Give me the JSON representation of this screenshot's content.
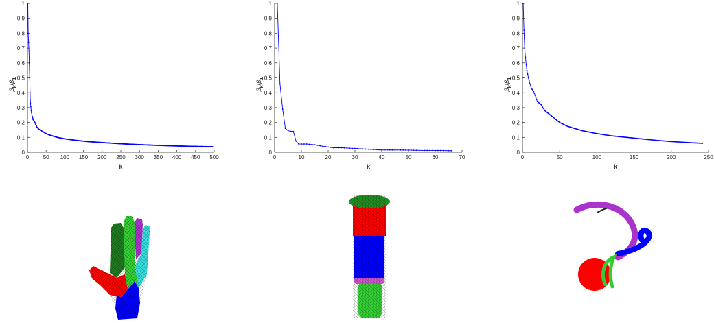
{
  "chart_data": [
    {
      "type": "line",
      "xlabel": "k",
      "ylabel_main": "β",
      "ylabel_sub_num": "k",
      "ylabel_sub_den": "1",
      "xlim": [
        0,
        500
      ],
      "ylim": [
        0,
        1
      ],
      "x_ticks": [
        0,
        50,
        100,
        150,
        200,
        250,
        300,
        350,
        400,
        450,
        500
      ],
      "y_ticks": [
        0,
        0.1,
        0.2,
        0.3,
        0.4,
        0.5,
        0.6,
        0.7,
        0.8,
        0.9,
        1
      ],
      "x_tick_labels": [
        "0",
        "50",
        "100",
        "150",
        "200",
        "250",
        "300",
        "350",
        "400",
        "450",
        "500"
      ],
      "y_tick_labels": [
        "0",
        "0.1",
        "0.2",
        "0.3",
        "0.4",
        "0.5",
        "0.6",
        "0.7",
        "0.8",
        "0.9",
        "1"
      ],
      "series": [
        {
          "color": "#0000ff",
          "n_points": 496,
          "x": [
            1,
            2,
            3,
            4,
            5,
            6,
            7,
            8,
            10,
            12,
            15,
            20,
            25,
            30,
            40,
            50,
            60,
            80,
            100,
            130,
            160,
            200,
            250,
            300,
            350,
            400,
            450,
            496
          ],
          "y": [
            1.0,
            0.8,
            0.74,
            0.68,
            0.6,
            0.5,
            0.4,
            0.33,
            0.28,
            0.25,
            0.22,
            0.2,
            0.17,
            0.155,
            0.14,
            0.125,
            0.115,
            0.1,
            0.09,
            0.08,
            0.072,
            0.065,
            0.057,
            0.051,
            0.046,
            0.042,
            0.039,
            0.037
          ]
        }
      ]
    },
    {
      "type": "line",
      "xlabel": "k",
      "ylabel_main": "β",
      "ylabel_sub_num": "k",
      "ylabel_sub_den": "1",
      "xlim": [
        0,
        70
      ],
      "ylim": [
        0,
        1
      ],
      "x_ticks": [
        0,
        10,
        20,
        30,
        40,
        50,
        60,
        70
      ],
      "y_ticks": [
        0,
        0.1,
        0.2,
        0.3,
        0.4,
        0.5,
        0.6,
        0.7,
        0.8,
        0.9,
        1
      ],
      "x_tick_labels": [
        "0",
        "10",
        "20",
        "30",
        "40",
        "50",
        "60",
        "70"
      ],
      "y_tick_labels": [
        "0",
        "0.1",
        "0.2",
        "0.3",
        "0.4",
        "0.5",
        "0.6",
        "0.7",
        "0.8",
        "0.9",
        "1"
      ],
      "series": [
        {
          "color": "#0000ff",
          "n_points": 66,
          "x": [
            1,
            2,
            3,
            4,
            5,
            6,
            7,
            8,
            9,
            10,
            12,
            15,
            18,
            20,
            22,
            25,
            30,
            35,
            40,
            45,
            50,
            55,
            60,
            66
          ],
          "y": [
            1.0,
            0.46,
            0.29,
            0.16,
            0.145,
            0.14,
            0.14,
            0.075,
            0.055,
            0.055,
            0.055,
            0.05,
            0.04,
            0.035,
            0.03,
            0.03,
            0.025,
            0.02,
            0.015,
            0.015,
            0.014,
            0.012,
            0.012,
            0.01
          ]
        }
      ]
    },
    {
      "type": "line",
      "xlabel": "k",
      "ylabel_main": "β",
      "ylabel_sub_num": "k",
      "ylabel_sub_den": "1",
      "xlim": [
        0,
        250
      ],
      "ylim": [
        0,
        1
      ],
      "x_ticks": [
        0,
        50,
        100,
        150,
        200,
        250
      ],
      "y_ticks": [
        0,
        0.1,
        0.2,
        0.3,
        0.4,
        0.5,
        0.6,
        0.7,
        0.8,
        0.9,
        1
      ],
      "x_tick_labels": [
        "0",
        "50",
        "100",
        "150",
        "200",
        "250"
      ],
      "y_tick_labels": [
        "0",
        "0.1",
        "0.2",
        "0.3",
        "0.4",
        "0.5",
        "0.6",
        "0.7",
        "0.8",
        "0.9",
        "1"
      ],
      "series": [
        {
          "color": "#0000ff",
          "n_points": 242,
          "x": [
            1,
            2,
            3,
            4,
            5,
            6,
            8,
            10,
            12,
            15,
            18,
            20,
            25,
            30,
            35,
            40,
            50,
            60,
            70,
            80,
            100,
            120,
            150,
            180,
            200,
            220,
            242
          ],
          "y": [
            1.0,
            0.82,
            0.7,
            0.64,
            0.59,
            0.55,
            0.5,
            0.46,
            0.43,
            0.41,
            0.37,
            0.34,
            0.32,
            0.28,
            0.26,
            0.24,
            0.2,
            0.175,
            0.16,
            0.145,
            0.125,
            0.11,
            0.095,
            0.08,
            0.072,
            0.066,
            0.06
          ]
        }
      ]
    }
  ],
  "meshes": {
    "hand": {
      "icon": "segmented-hand-mesh",
      "segment_colors": [
        "#ff0000",
        "#0000ff",
        "#1f7a1f",
        "#33cc33",
        "#aa33cc",
        "#33dddd"
      ]
    },
    "cylinder": {
      "icon": "segmented-cylinder-mesh",
      "segment_colors": [
        "#228b22",
        "#ff0000",
        "#0000ff",
        "#cc55cc",
        "#33cc33"
      ]
    },
    "octopus": {
      "icon": "segmented-octopus-mesh",
      "segment_colors": [
        "#ff0000",
        "#0000ff",
        "#aa33cc",
        "#33cc33",
        "#222222"
      ]
    }
  }
}
